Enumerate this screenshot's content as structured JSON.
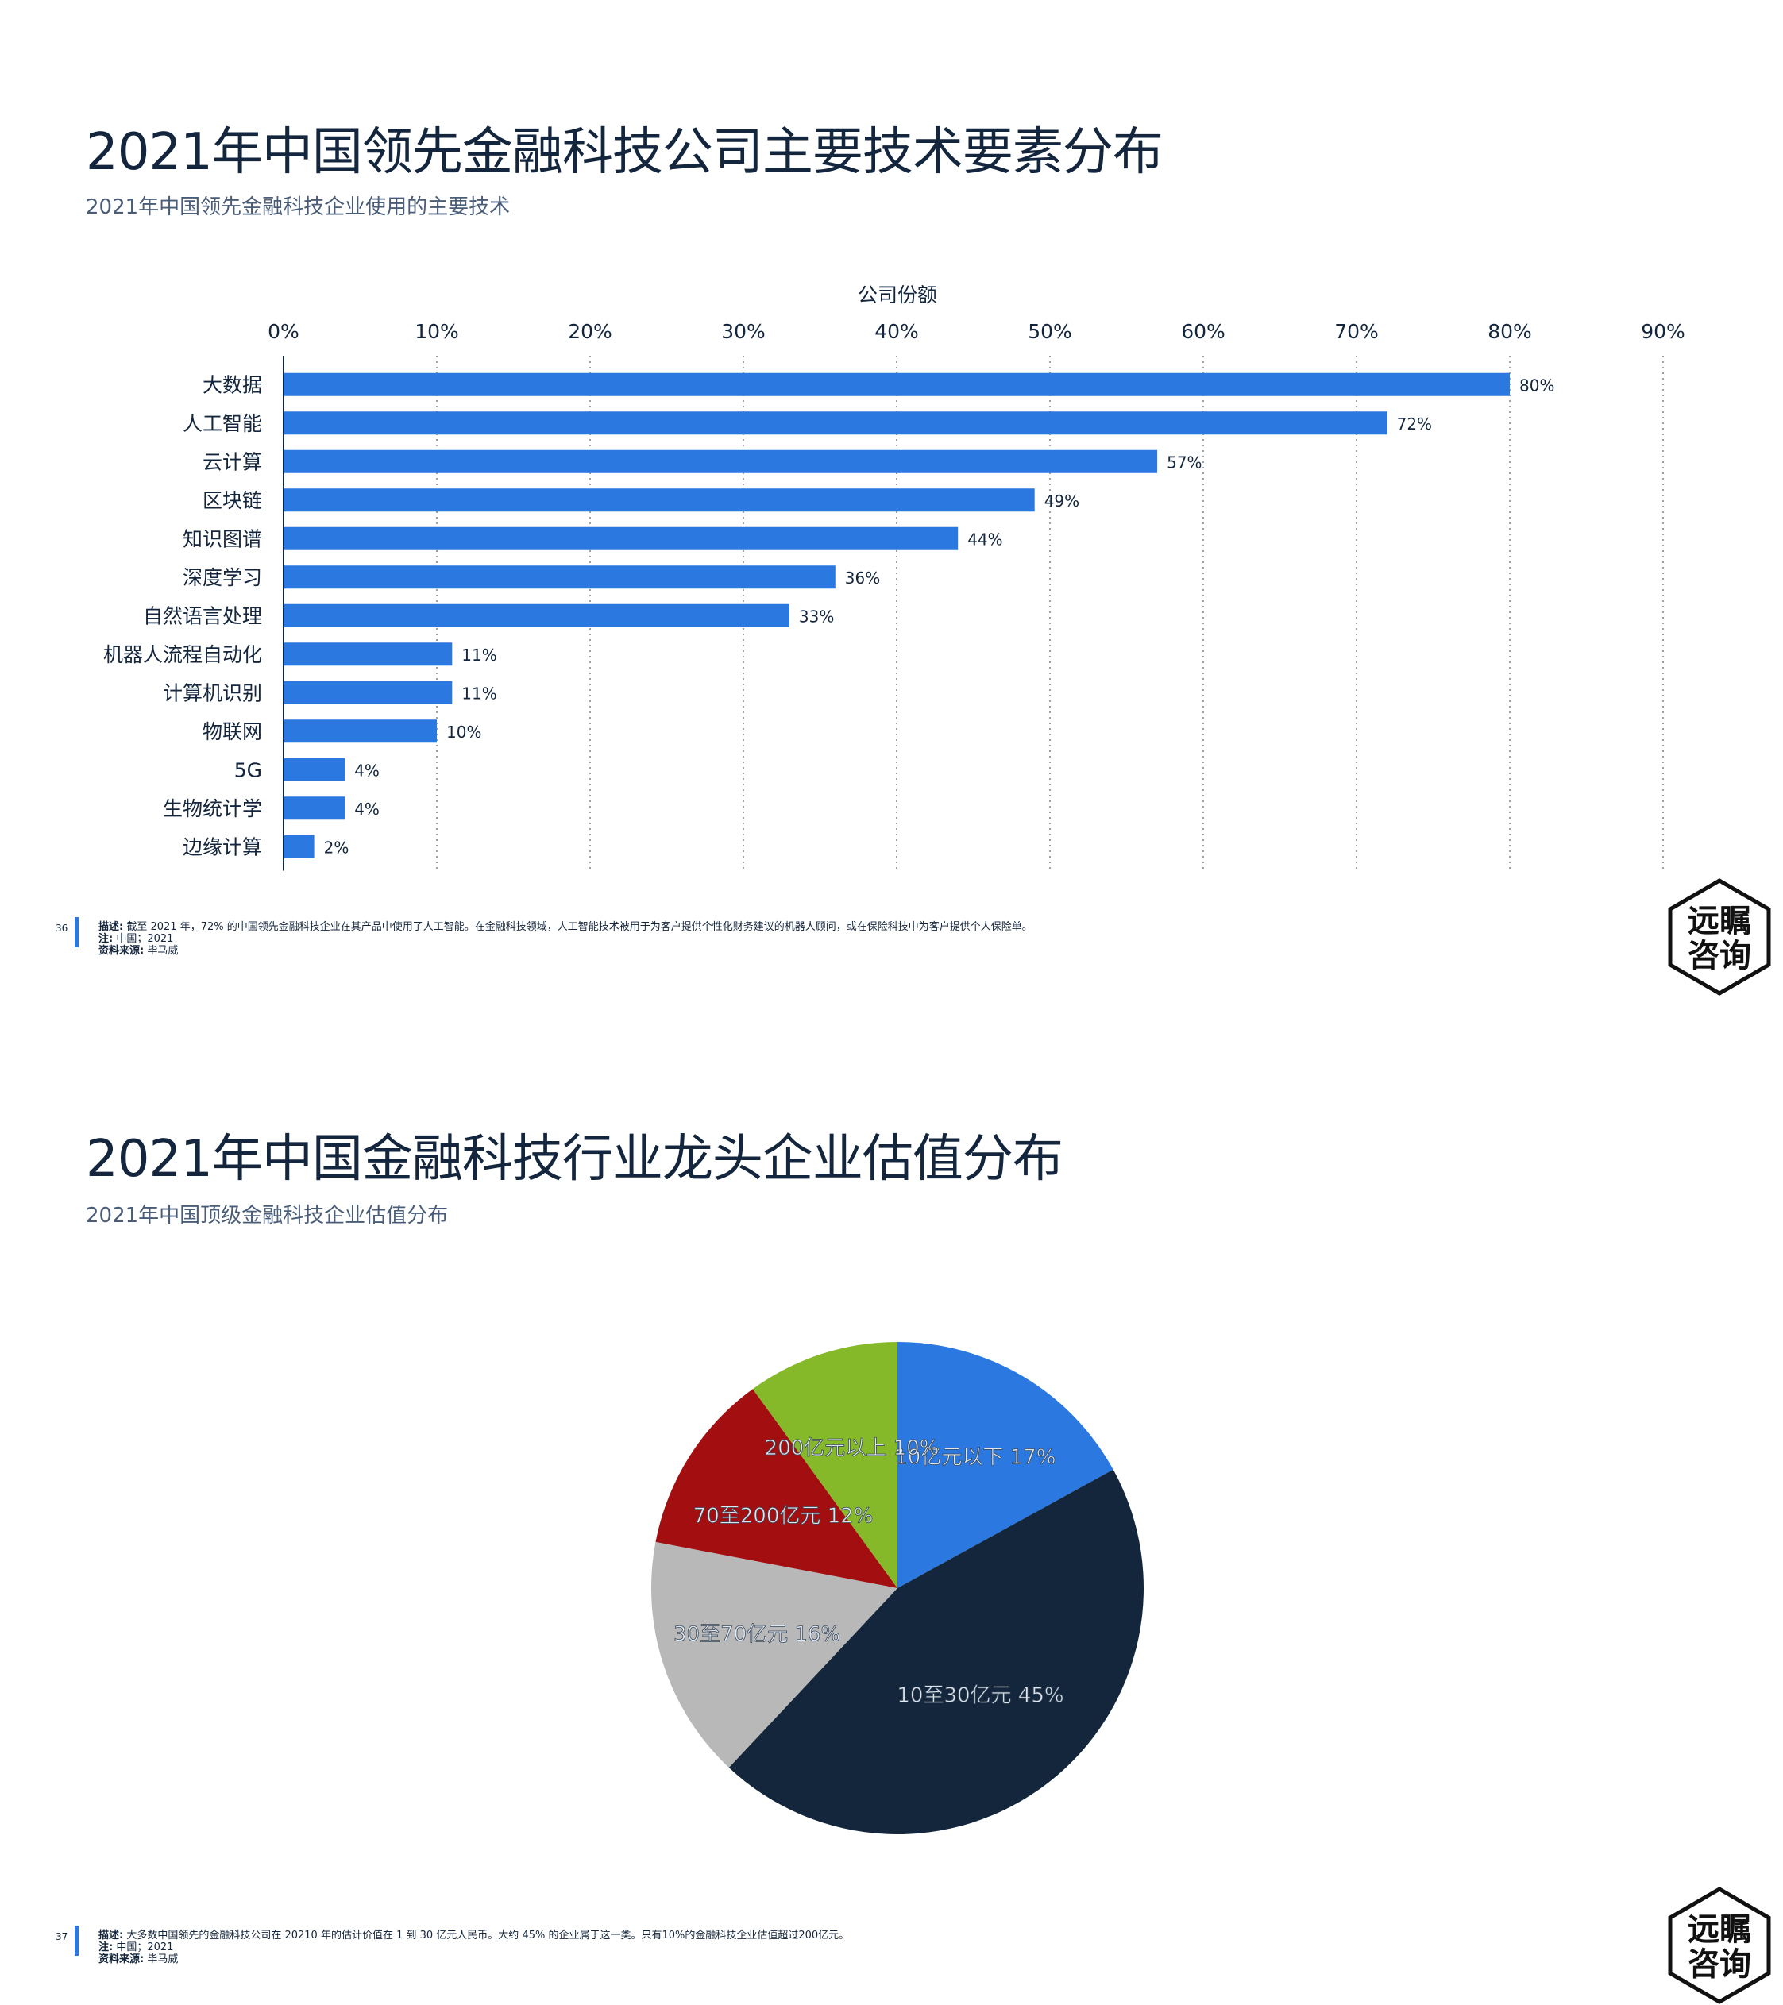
{
  "page1": {
    "title": "2021年中国领先金融科技公司主要技术要素分布",
    "subtitle": "2021年中国领先金融科技企业使用的主要技术",
    "page_number": "36",
    "footnote": {
      "desc_label": "描述:",
      "desc_text": "截至 2021 年，72% 的中国领先金融科技企业在其产品中使用了人工智能。在金融科技领域，人工智能技术被用于为客户提供个性化财务建议的机器人顾问，或在保险科技中为客户提供个人保险单。",
      "note_label": "注:",
      "note_text": "中国；2021",
      "source_label": "资料来源:",
      "source_text": "毕马威"
    }
  },
  "page2": {
    "title": "2021年中国金融科技行业龙头企业估值分布",
    "subtitle": "2021年中国顶级金融科技企业估值分布",
    "page_number": "37",
    "footnote": {
      "desc_label": "描述:",
      "desc_text": "大多数中国领先的金融科技公司在 20210 年的估计价值在 1 到 30 亿元人民币。大约 45% 的企业属于这一类。只有10%的金融科技企业估值超过200亿元。",
      "note_label": "注:",
      "note_text": "中国；2021",
      "source_label": "资料来源:",
      "source_text": "毕马威"
    }
  },
  "logo": {
    "line1": "远瞩",
    "line2": "咨询"
  },
  "colors": {
    "bar": "#2a78e0",
    "navy": "#14263d"
  },
  "chart_data": [
    {
      "type": "bar",
      "orientation": "horizontal",
      "xlabel": "公司份额",
      "xlim": [
        0,
        90
      ],
      "xticks": [
        "0%",
        "10%",
        "20%",
        "30%",
        "40%",
        "50%",
        "60%",
        "70%",
        "80%",
        "90%"
      ],
      "categories": [
        "大数据",
        "人工智能",
        "云计算",
        "区块链",
        "知识图谱",
        "深度学习",
        "自然语言处理",
        "机器人流程自动化",
        "计算机识别",
        "物联网",
        "5G",
        "生物统计学",
        "边缘计算"
      ],
      "values": [
        80,
        72,
        57,
        49,
        44,
        36,
        33,
        11,
        11,
        10,
        4,
        4,
        2
      ],
      "data_labels": [
        "80%",
        "72%",
        "57%",
        "49%",
        "44%",
        "36%",
        "33%",
        "11%",
        "11%",
        "10%",
        "4%",
        "4%",
        "2%"
      ],
      "grid": "vertical dotted",
      "color": "#2a78e0"
    },
    {
      "type": "pie",
      "slices": [
        {
          "label": "10亿元以下",
          "value": 17,
          "value_label": "17%",
          "color": "#2a78e0"
        },
        {
          "label": "10至30亿元",
          "value": 45,
          "value_label": "45%",
          "color": "#13263c"
        },
        {
          "label": "30至70亿元",
          "value": 16,
          "value_label": "16%",
          "color": "#b8b8b8"
        },
        {
          "label": "70至200亿元",
          "value": 12,
          "value_label": "12%",
          "color": "#a30f10"
        },
        {
          "label": "200亿元以上",
          "value": 10,
          "value_label": "10%",
          "color": "#86b929"
        }
      ]
    }
  ]
}
